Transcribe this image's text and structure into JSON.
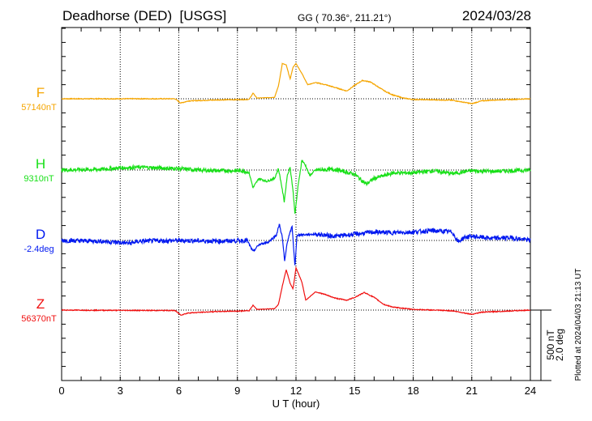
{
  "header": {
    "station": "Deadhorse (DED)  [USGS]",
    "coords": "GG ( 70.36°, 211.21°)",
    "date": "2024/03/28"
  },
  "footer": {
    "plotted": "Plotted at 2024/04/03 21:13 UT",
    "scale_nT": "500 nT",
    "scale_deg": "2.0 deg"
  },
  "chart_data": {
    "type": "line",
    "title": "Deadhorse (DED)  [USGS]",
    "xlabel": "U T (hour)",
    "xlim": [
      0,
      24
    ],
    "xticks": [
      "0",
      "3",
      "6",
      "9",
      "12",
      "15",
      "18",
      "21",
      "24"
    ],
    "scale": "500 nT / 2.0 deg per scale bar",
    "grid": true,
    "series": [
      {
        "name": "F",
        "baseline": "57140nT",
        "color": "#f5a500",
        "noise": 3,
        "points": [
          [
            0,
            0
          ],
          [
            3,
            0
          ],
          [
            5.8,
            0
          ],
          [
            6.1,
            -30
          ],
          [
            6.5,
            -15
          ],
          [
            8,
            -8
          ],
          [
            9.6,
            -5
          ],
          [
            9.8,
            40
          ],
          [
            10,
            5
          ],
          [
            10.9,
            10
          ],
          [
            11.1,
            90
          ],
          [
            11.3,
            250
          ],
          [
            11.5,
            240
          ],
          [
            11.7,
            140
          ],
          [
            11.85,
            225
          ],
          [
            12,
            250
          ],
          [
            12.3,
            180
          ],
          [
            12.6,
            100
          ],
          [
            13,
            115
          ],
          [
            13.5,
            100
          ],
          [
            14,
            80
          ],
          [
            14.6,
            55
          ],
          [
            15,
            95
          ],
          [
            15.4,
            130
          ],
          [
            15.8,
            120
          ],
          [
            16.2,
            85
          ],
          [
            16.6,
            50
          ],
          [
            17,
            25
          ],
          [
            17.5,
            5
          ],
          [
            18,
            -5
          ],
          [
            20,
            -10
          ],
          [
            21,
            -35
          ],
          [
            21.5,
            -15
          ],
          [
            22,
            -10
          ],
          [
            24,
            0
          ]
        ]
      },
      {
        "name": "H",
        "baseline": "9310nT",
        "color": "#18e018",
        "noise": 14,
        "points": [
          [
            0,
            0
          ],
          [
            2,
            5
          ],
          [
            3,
            15
          ],
          [
            4,
            20
          ],
          [
            5,
            15
          ],
          [
            6,
            10
          ],
          [
            7,
            0
          ],
          [
            8,
            -5
          ],
          [
            9.3,
            -5
          ],
          [
            9.6,
            -20
          ],
          [
            9.8,
            -126
          ],
          [
            10.1,
            -60
          ],
          [
            10.5,
            -80
          ],
          [
            10.9,
            -60
          ],
          [
            11.1,
            10
          ],
          [
            11.25,
            -100
          ],
          [
            11.4,
            -225
          ],
          [
            11.55,
            -40
          ],
          [
            11.7,
            20
          ],
          [
            11.85,
            -150
          ],
          [
            11.95,
            -316
          ],
          [
            12.1,
            -120
          ],
          [
            12.3,
            70
          ],
          [
            12.5,
            30
          ],
          [
            12.7,
            -40
          ],
          [
            13,
            0
          ],
          [
            14,
            5
          ],
          [
            15,
            -30
          ],
          [
            15.6,
            -100
          ],
          [
            16,
            -60
          ],
          [
            17,
            -20
          ],
          [
            18,
            -20
          ],
          [
            19,
            -5
          ],
          [
            20,
            -25
          ],
          [
            21,
            -5
          ],
          [
            22,
            -10
          ],
          [
            24,
            0
          ]
        ]
      },
      {
        "name": "D",
        "baseline": "-2.4deg",
        "color": "#0018f0",
        "noise": 16,
        "points": [
          [
            0,
            0
          ],
          [
            2,
            -5
          ],
          [
            3.5,
            -20
          ],
          [
            4,
            -5
          ],
          [
            6,
            0
          ],
          [
            8,
            -5
          ],
          [
            9.5,
            0
          ],
          [
            9.8,
            -80
          ],
          [
            10.1,
            -30
          ],
          [
            10.6,
            -10
          ],
          [
            11,
            40
          ],
          [
            11.15,
            115
          ],
          [
            11.3,
            20
          ],
          [
            11.42,
            -150
          ],
          [
            11.55,
            -10
          ],
          [
            11.8,
            100
          ],
          [
            11.95,
            -190
          ],
          [
            12.05,
            40
          ],
          [
            12.3,
            40
          ],
          [
            13,
            45
          ],
          [
            14,
            30
          ],
          [
            15,
            45
          ],
          [
            16,
            60
          ],
          [
            17,
            55
          ],
          [
            18,
            60
          ],
          [
            19,
            70
          ],
          [
            20,
            60
          ],
          [
            20.3,
            -10
          ],
          [
            20.6,
            20
          ],
          [
            21,
            30
          ],
          [
            22,
            15
          ],
          [
            23,
            20
          ],
          [
            24,
            0
          ]
        ]
      },
      {
        "name": "Z",
        "baseline": "56370nT",
        "color": "#f01010",
        "noise": 3,
        "points": [
          [
            0,
            0
          ],
          [
            3,
            -2
          ],
          [
            5.8,
            -3
          ],
          [
            6.1,
            -35
          ],
          [
            6.5,
            -20
          ],
          [
            8,
            -10
          ],
          [
            9.6,
            -5
          ],
          [
            9.8,
            35
          ],
          [
            10,
            5
          ],
          [
            10.9,
            10
          ],
          [
            11.1,
            40
          ],
          [
            11.3,
            170
          ],
          [
            11.5,
            287
          ],
          [
            11.7,
            190
          ],
          [
            11.85,
            150
          ],
          [
            12,
            300
          ],
          [
            12.3,
            200
          ],
          [
            12.5,
            70
          ],
          [
            13,
            130
          ],
          [
            13.5,
            110
          ],
          [
            14,
            85
          ],
          [
            14.6,
            70
          ],
          [
            15,
            90
          ],
          [
            15.5,
            125
          ],
          [
            16,
            90
          ],
          [
            16.5,
            40
          ],
          [
            17,
            20
          ],
          [
            18,
            5
          ],
          [
            20,
            -5
          ],
          [
            21,
            -30
          ],
          [
            21.5,
            -15
          ],
          [
            24,
            0
          ]
        ]
      }
    ]
  }
}
